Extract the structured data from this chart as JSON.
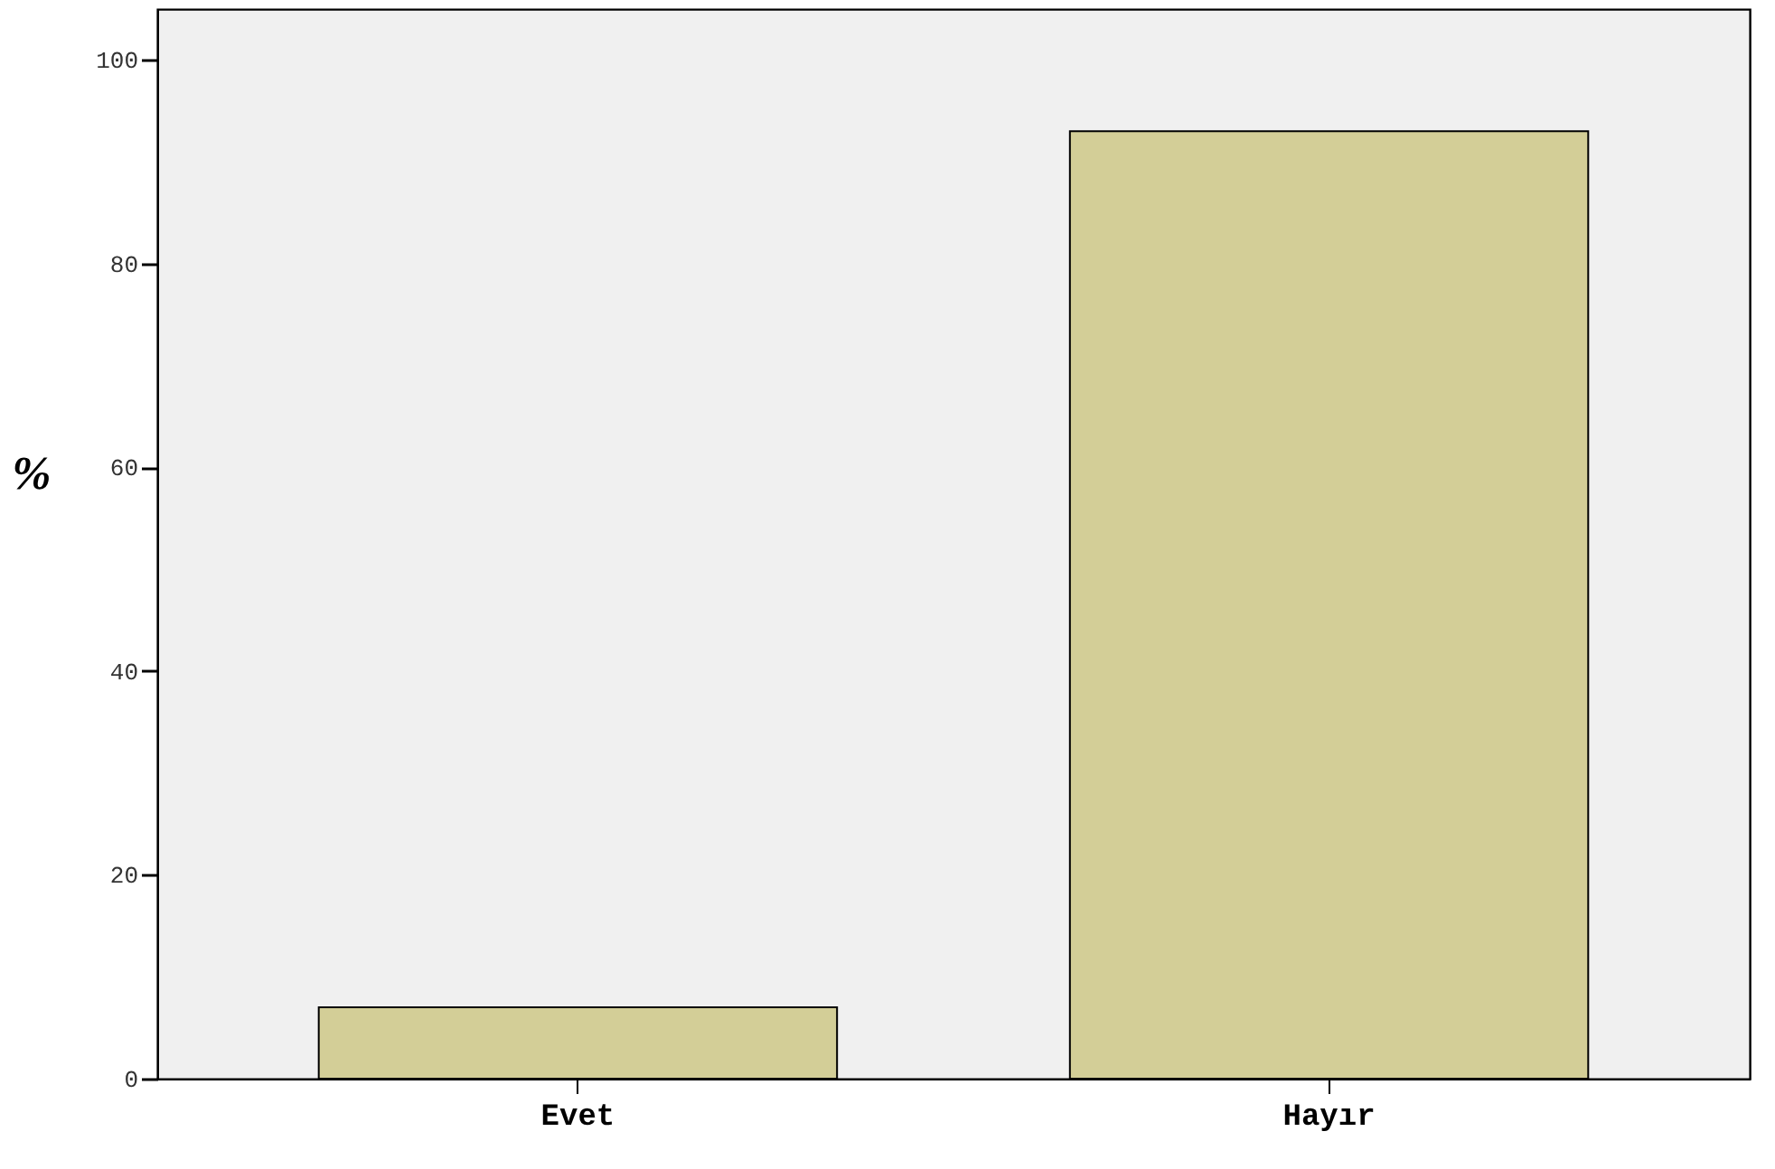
{
  "chart_data": {
    "type": "bar",
    "ylabel": "%",
    "categories": [
      "Evet",
      "Hayır"
    ],
    "values": [
      7,
      93
    ],
    "color": "#d3ce97",
    "ylim": [
      0,
      105
    ],
    "yticks": [
      0,
      20,
      40,
      60,
      80,
      100
    ],
    "grid": false
  }
}
